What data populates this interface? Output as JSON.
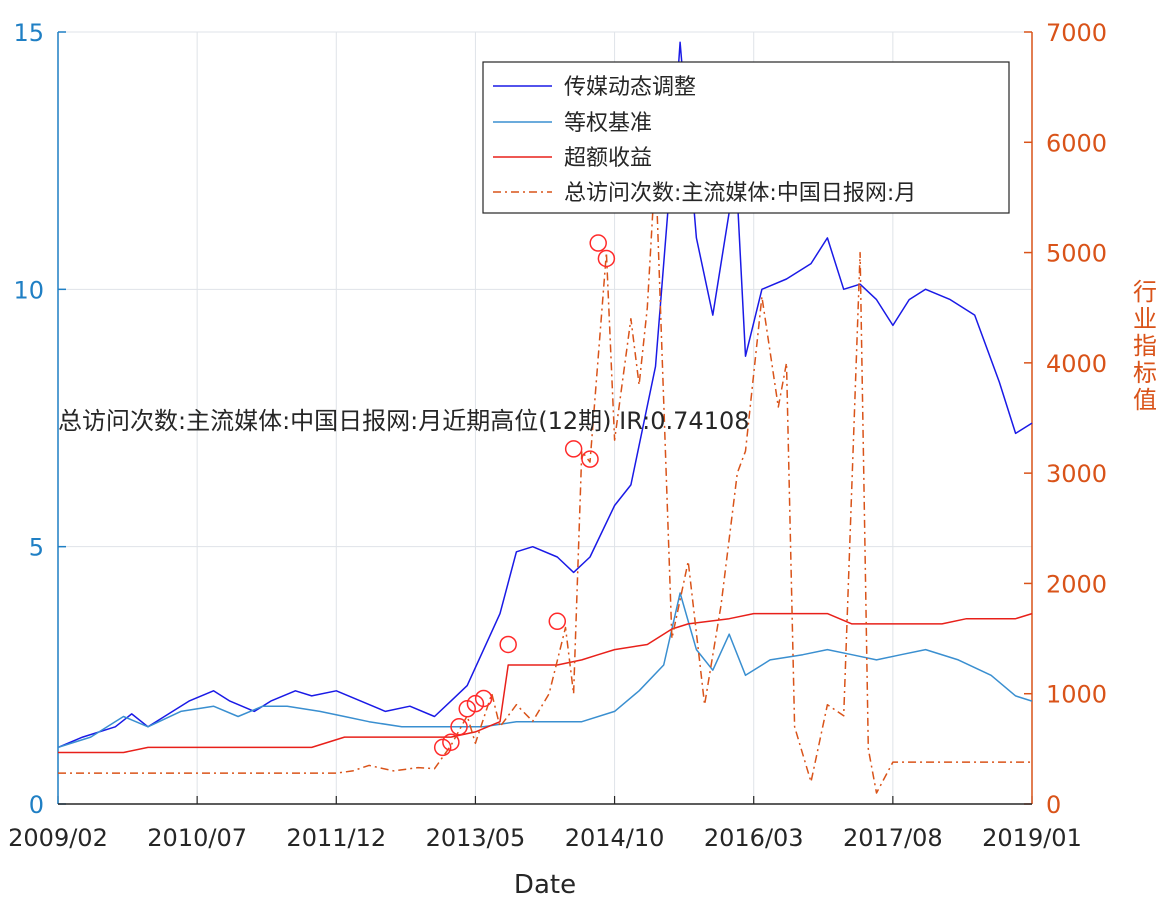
{
  "chart_data": {
    "type": "line",
    "xlabel": "Date",
    "ylabel_right": "行业指标值",
    "annotation": "总访问次数:主流媒体:中国日报网:月近期高位(12期)  IR:0.74108",
    "x_ticks": [
      "2009/02",
      "2010/07",
      "2011/12",
      "2013/05",
      "2014/10",
      "2016/03",
      "2017/08",
      "2019/01"
    ],
    "left_axis": {
      "ylim": [
        0,
        15
      ],
      "ticks": [
        0,
        5,
        10,
        15
      ],
      "color": "#1f7fc4"
    },
    "right_axis": {
      "ylim": [
        0,
        7000
      ],
      "ticks": [
        0,
        1000,
        2000,
        3000,
        4000,
        5000,
        6000,
        7000
      ],
      "color": "#d95319"
    },
    "x_range": [
      "2009/02",
      "2019/01"
    ],
    "grid": true,
    "legend_position": "top-right",
    "series": [
      {
        "name": "传媒动态调整",
        "axis": "left",
        "color": "#1a1ae6",
        "style": "solid",
        "points": [
          [
            "2009/02",
            1.1
          ],
          [
            "2009/05",
            1.3
          ],
          [
            "2009/09",
            1.5
          ],
          [
            "2009/11",
            1.75
          ],
          [
            "2010/01",
            1.5
          ],
          [
            "2010/04",
            1.8
          ],
          [
            "2010/06",
            2.0
          ],
          [
            "2010/09",
            2.2
          ],
          [
            "2010/11",
            2.0
          ],
          [
            "2011/02",
            1.8
          ],
          [
            "2011/04",
            2.0
          ],
          [
            "2011/07",
            2.2
          ],
          [
            "2011/09",
            2.1
          ],
          [
            "2011/12",
            2.2
          ],
          [
            "2012/03",
            2.0
          ],
          [
            "2012/06",
            1.8
          ],
          [
            "2012/09",
            1.9
          ],
          [
            "2012/12",
            1.7
          ],
          [
            "2013/02",
            2.0
          ],
          [
            "2013/04",
            2.3
          ],
          [
            "2013/06",
            3.0
          ],
          [
            "2013/08",
            3.7
          ],
          [
            "2013/10",
            4.9
          ],
          [
            "2013/12",
            5.0
          ],
          [
            "2014/03",
            4.8
          ],
          [
            "2014/05",
            4.5
          ],
          [
            "2014/07",
            4.8
          ],
          [
            "2014/10",
            5.8
          ],
          [
            "2014/12",
            6.2
          ],
          [
            "2015/03",
            8.5
          ],
          [
            "2015/05",
            12.5
          ],
          [
            "2015/06",
            14.8
          ],
          [
            "2015/08",
            11.0
          ],
          [
            "2015/10",
            9.5
          ],
          [
            "2015/12",
            11.5
          ],
          [
            "2016/01",
            11.8
          ],
          [
            "2016/02",
            8.7
          ],
          [
            "2016/04",
            10.0
          ],
          [
            "2016/07",
            10.2
          ],
          [
            "2016/10",
            10.5
          ],
          [
            "2016/12",
            11.0
          ],
          [
            "2017/02",
            10.0
          ],
          [
            "2017/04",
            10.1
          ],
          [
            "2017/06",
            9.8
          ],
          [
            "2017/08",
            9.3
          ],
          [
            "2017/10",
            9.8
          ],
          [
            "2017/12",
            10.0
          ],
          [
            "2018/03",
            9.8
          ],
          [
            "2018/06",
            9.5
          ],
          [
            "2018/09",
            8.2
          ],
          [
            "2018/11",
            7.2
          ],
          [
            "2019/01",
            7.4
          ]
        ]
      },
      {
        "name": "等权基准",
        "axis": "left",
        "color": "#3a8fd0",
        "style": "solid",
        "points": [
          [
            "2009/02",
            1.1
          ],
          [
            "2009/06",
            1.3
          ],
          [
            "2009/10",
            1.7
          ],
          [
            "2010/01",
            1.5
          ],
          [
            "2010/05",
            1.8
          ],
          [
            "2010/09",
            1.9
          ],
          [
            "2010/12",
            1.7
          ],
          [
            "2011/03",
            1.9
          ],
          [
            "2011/06",
            1.9
          ],
          [
            "2011/10",
            1.8
          ],
          [
            "2012/01",
            1.7
          ],
          [
            "2012/04",
            1.6
          ],
          [
            "2012/08",
            1.5
          ],
          [
            "2012/12",
            1.5
          ],
          [
            "2013/03",
            1.5
          ],
          [
            "2013/06",
            1.5
          ],
          [
            "2013/10",
            1.6
          ],
          [
            "2014/02",
            1.6
          ],
          [
            "2014/06",
            1.6
          ],
          [
            "2014/10",
            1.8
          ],
          [
            "2015/01",
            2.2
          ],
          [
            "2015/04",
            2.7
          ],
          [
            "2015/06",
            4.1
          ],
          [
            "2015/08",
            3.0
          ],
          [
            "2015/10",
            2.6
          ],
          [
            "2015/12",
            3.3
          ],
          [
            "2016/02",
            2.5
          ],
          [
            "2016/05",
            2.8
          ],
          [
            "2016/09",
            2.9
          ],
          [
            "2016/12",
            3.0
          ],
          [
            "2017/03",
            2.9
          ],
          [
            "2017/06",
            2.8
          ],
          [
            "2017/09",
            2.9
          ],
          [
            "2017/12",
            3.0
          ],
          [
            "2018/04",
            2.8
          ],
          [
            "2018/08",
            2.5
          ],
          [
            "2018/11",
            2.1
          ],
          [
            "2019/01",
            2.0
          ]
        ]
      },
      {
        "name": "超额收益",
        "axis": "left",
        "color": "#e8201a",
        "style": "solid",
        "points": [
          [
            "2009/02",
            1.0
          ],
          [
            "2009/10",
            1.0
          ],
          [
            "2010/01",
            1.1
          ],
          [
            "2010/06",
            1.1
          ],
          [
            "2010/09",
            1.1
          ],
          [
            "2011/09",
            1.1
          ],
          [
            "2012/01",
            1.3
          ],
          [
            "2013/02",
            1.3
          ],
          [
            "2013/05",
            1.4
          ],
          [
            "2013/08",
            1.6
          ],
          [
            "2013/09",
            2.7
          ],
          [
            "2014/03",
            2.7
          ],
          [
            "2014/06",
            2.8
          ],
          [
            "2014/08",
            2.9
          ],
          [
            "2014/10",
            3.0
          ],
          [
            "2015/02",
            3.1
          ],
          [
            "2015/05",
            3.4
          ],
          [
            "2015/07",
            3.5
          ],
          [
            "2015/12",
            3.6
          ],
          [
            "2016/03",
            3.7
          ],
          [
            "2016/06",
            3.7
          ],
          [
            "2016/12",
            3.7
          ],
          [
            "2017/03",
            3.5
          ],
          [
            "2017/09",
            3.5
          ],
          [
            "2018/02",
            3.5
          ],
          [
            "2018/05",
            3.6
          ],
          [
            "2018/11",
            3.6
          ],
          [
            "2019/01",
            3.7
          ]
        ]
      },
      {
        "name": "总访问次数:主流媒体:中国日报网:月",
        "axis": "right",
        "color": "#d95319",
        "style": "dashdot",
        "points": [
          [
            "2009/02",
            280
          ],
          [
            "2010/06",
            280
          ],
          [
            "2011/12",
            280
          ],
          [
            "2012/02",
            300
          ],
          [
            "2012/04",
            350
          ],
          [
            "2012/07",
            300
          ],
          [
            "2012/10",
            330
          ],
          [
            "2012/12",
            320
          ],
          [
            "2013/02",
            530
          ],
          [
            "2013/04",
            800
          ],
          [
            "2013/05",
            550
          ],
          [
            "2013/07",
            1000
          ],
          [
            "2013/08",
            700
          ],
          [
            "2013/10",
            900
          ],
          [
            "2013/12",
            750
          ],
          [
            "2014/02",
            1000
          ],
          [
            "2014/04",
            1600
          ],
          [
            "2014/05",
            1000
          ],
          [
            "2014/06",
            3200
          ],
          [
            "2014/07",
            3100
          ],
          [
            "2014/09",
            5000
          ],
          [
            "2014/10",
            3300
          ],
          [
            "2014/12",
            4400
          ],
          [
            "2015/01",
            3800
          ],
          [
            "2015/02",
            4500
          ],
          [
            "2015/03",
            5800
          ],
          [
            "2015/05",
            1500
          ],
          [
            "2015/07",
            2200
          ],
          [
            "2015/09",
            900
          ],
          [
            "2015/11",
            1800
          ],
          [
            "2016/01",
            3000
          ],
          [
            "2016/02",
            3200
          ],
          [
            "2016/04",
            4600
          ],
          [
            "2016/06",
            3600
          ],
          [
            "2016/07",
            4000
          ],
          [
            "2016/08",
            700
          ],
          [
            "2016/10",
            200
          ],
          [
            "2016/12",
            900
          ],
          [
            "2017/02",
            800
          ],
          [
            "2017/04",
            5000
          ],
          [
            "2017/05",
            500
          ],
          [
            "2017/06",
            100
          ],
          [
            "2017/08",
            380
          ],
          [
            "2019/01",
            380
          ]
        ]
      }
    ],
    "markers": [
      [
        "2013/01",
        1.1
      ],
      [
        "2013/02",
        1.2
      ],
      [
        "2013/03",
        1.5
      ],
      [
        "2013/04",
        1.85
      ],
      [
        "2013/05",
        1.95
      ],
      [
        "2013/06",
        2.05
      ],
      [
        "2013/09",
        3.1
      ],
      [
        "2014/03",
        3.55
      ],
      [
        "2014/05",
        6.9
      ],
      [
        "2014/07",
        6.7
      ],
      [
        "2014/08",
        10.9
      ],
      [
        "2014/09",
        10.6
      ]
    ]
  }
}
